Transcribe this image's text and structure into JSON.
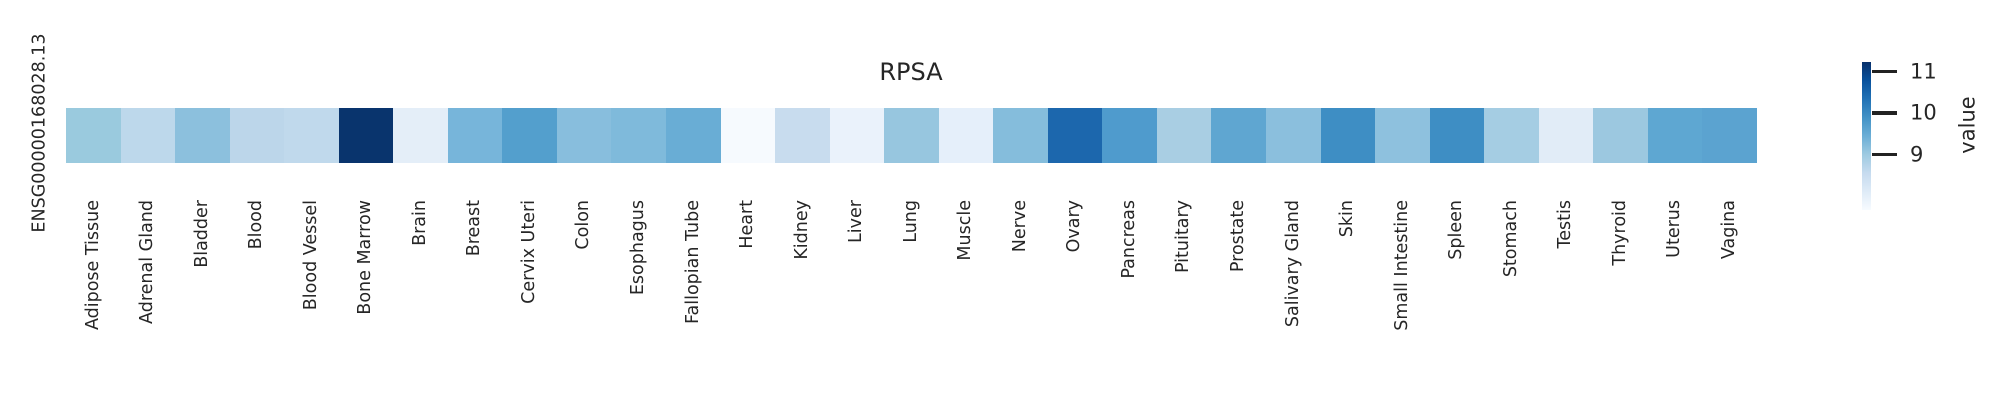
{
  "figure": {
    "background": "#ffffff",
    "text_color": "#262626"
  },
  "chart_data": {
    "type": "heatmap",
    "title": "RPSA",
    "row_label": "ENSG00000168028.13",
    "colormap": "Blues",
    "value_range": [
      7.67,
      11.23
    ],
    "categories": [
      "Adipose Tissue",
      "Adrenal Gland",
      "Bladder",
      "Blood",
      "Blood Vessel",
      "Bone Marrow",
      "Brain",
      "Breast",
      "Cervix Uteri",
      "Colon",
      "Esophagus",
      "Fallopian Tube",
      "Heart",
      "Kidney",
      "Liver",
      "Lung",
      "Muscle",
      "Nerve",
      "Ovary",
      "Pancreas",
      "Pituitary",
      "Prostate",
      "Salivary Gland",
      "Skin",
      "Small Intestine",
      "Spleen",
      "Stomach",
      "Testis",
      "Thyroid",
      "Uterus",
      "Vagina"
    ],
    "values": [
      9.1,
      8.7,
      9.2,
      8.7,
      8.6,
      11.2,
      8.0,
      9.4,
      9.7,
      9.2,
      9.3,
      9.5,
      7.7,
      8.6,
      7.9,
      9.1,
      8.0,
      9.2,
      10.5,
      9.8,
      8.9,
      9.6,
      9.2,
      10.0,
      9.2,
      10.0,
      8.9,
      8.1,
      9.0,
      9.6,
      9.6
    ],
    "cell_colors": [
      "#9acade",
      "#bdd8eb",
      "#8cc0dd",
      "#bcd6ea",
      "#c0d9ec",
      "#09346d",
      "#e4eef8",
      "#77b5da",
      "#539fcd",
      "#88bedd",
      "#7fbadb",
      "#69add5",
      "#f6fafe",
      "#c8dcee",
      "#eaf2fb",
      "#97c6df",
      "#e5effa",
      "#85bddc",
      "#1c67ad",
      "#4f9bcd",
      "#a9cee3",
      "#5fa6d1",
      "#8bbfdd",
      "#3e8ec4",
      "#8ec1de",
      "#3e8ec4",
      "#a5cde3",
      "#e1ecf7",
      "#9cc8e0",
      "#5ea7d2",
      "#5ba3d0"
    ],
    "colorbar": {
      "label": "value",
      "ticks": [
        11,
        10,
        9
      ],
      "gradient_stops": [
        "#08306b",
        "#08519c",
        "#2171b5",
        "#4292c6",
        "#6baed6",
        "#9ecae1",
        "#c6dbef",
        "#deebf7",
        "#f7fbff"
      ]
    }
  }
}
